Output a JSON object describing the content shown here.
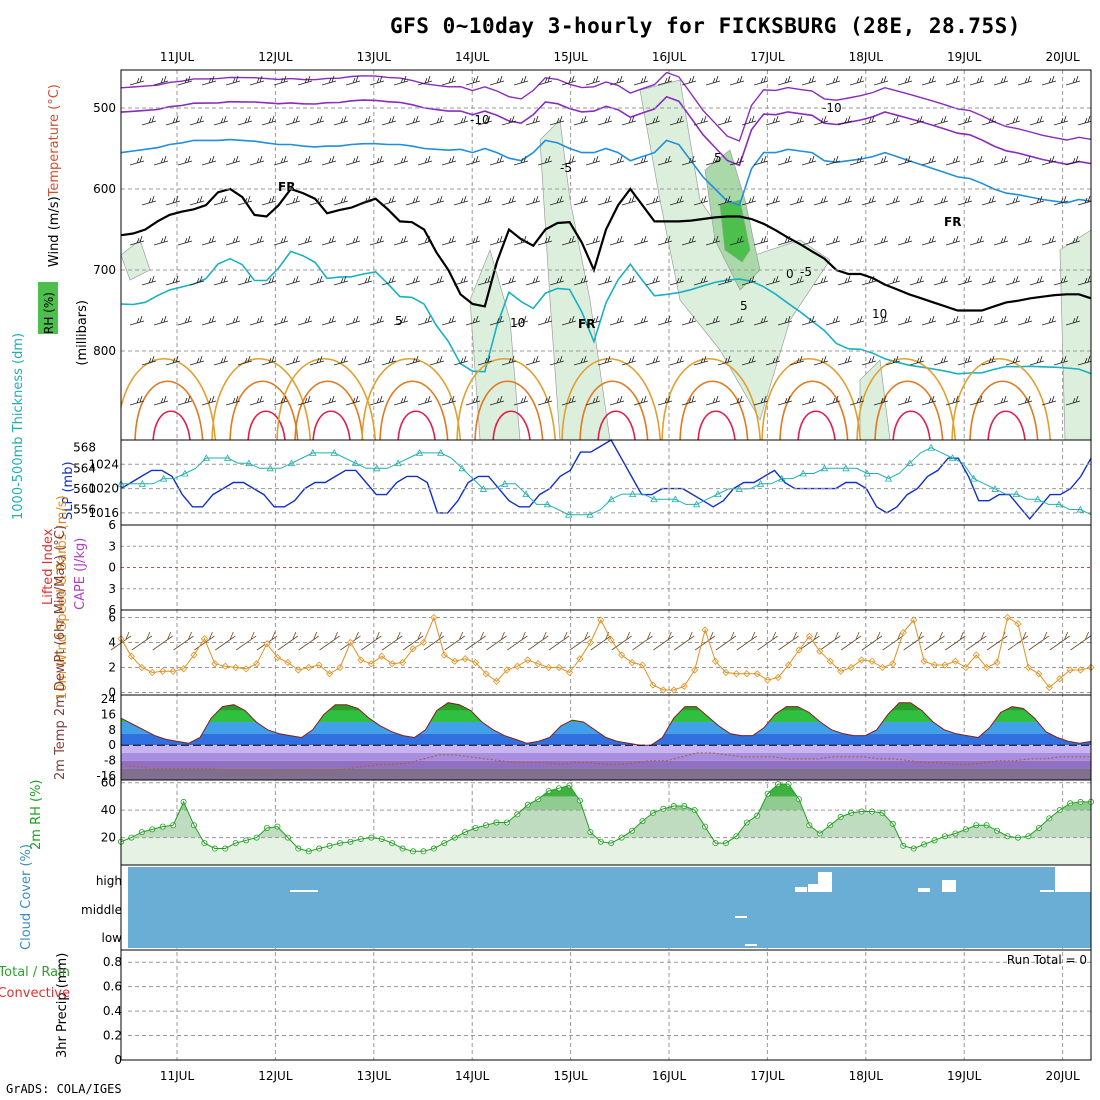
{
  "title": "GFS 0~10day 3-hourly for FICKSBURG (28E, 28.75S)",
  "credit": "GrADS: COLA/IGES",
  "days": [
    "11JUL",
    "12JUL",
    "13JUL",
    "14JUL",
    "15JUL",
    "16JUL",
    "17JUL",
    "18JUL",
    "19JUL",
    "20JUL"
  ],
  "colors": {
    "grid": "#9a9a9a",
    "rh_light": "#dcefdc",
    "rh_mid": "#a9d8a9",
    "rh_dark": "#4cbf4c",
    "temp_neg10": "#8a2bc0",
    "temp_neg5": "#1f8fe0",
    "temp_5": "#17b1c0",
    "temp_10": "#e0a030",
    "temp_15": "#e07a20",
    "temp_20": "#e0204a",
    "slp": "#1030c8",
    "thick": "#20b0b0",
    "wind": "#e09020",
    "rh2m": "#20a020",
    "cloud": "#6aaed6"
  },
  "chart_data": [
    {
      "id": "sounding",
      "type": "heatmap",
      "ylabel_parts": [
        "Wind (m/s)",
        "Temperature (°C)",
        "RH (%)",
        "(millibars)"
      ],
      "y_ticks": [
        "500",
        "600",
        "700",
        "800"
      ],
      "ylim": [
        910,
        453
      ],
      "contour_labels": [
        "-10",
        "-10",
        "-5",
        "-5",
        "5",
        "5",
        "10",
        "10",
        "FR",
        "FR",
        "FR",
        "5",
        "0"
      ],
      "freezing_level_mb": [
        657,
        655,
        650,
        640,
        632,
        628,
        625,
        620,
        604,
        600,
        610,
        632,
        634,
        620,
        600,
        605,
        612,
        630,
        626,
        623,
        617,
        612,
        625,
        640,
        641,
        650,
        678,
        700,
        730,
        742,
        745,
        690,
        650,
        662,
        670,
        650,
        642,
        641,
        666,
        700,
        650,
        620,
        600,
        620,
        640,
        640,
        640,
        639,
        637,
        635,
        634,
        634,
        637,
        643,
        651,
        660,
        668,
        677,
        686,
        700,
        705,
        705,
        710,
        718,
        724,
        730,
        735,
        740,
        745,
        750,
        750,
        750,
        745,
        740,
        738,
        735,
        733,
        731,
        730,
        730,
        735
      ],
      "minus5_level_mb": [
        560,
        558,
        556,
        554,
        550,
        548,
        545,
        545,
        545,
        544,
        545,
        546,
        548,
        550,
        550,
        552,
        553,
        552,
        552,
        550,
        549,
        549,
        550,
        550,
        552,
        555,
        556,
        557,
        556,
        560,
        555,
        560,
        567,
        570,
        560,
        545,
        548,
        555,
        560,
        560,
        555,
        560,
        570,
        565,
        560,
        545,
        550,
        570,
        590,
        605,
        620,
        625,
        580,
        560,
        560,
        556,
        558,
        560,
        570,
        572,
        570,
        568,
        565,
        560,
        565,
        570,
        575,
        580,
        585,
        590,
        592,
        598,
        605,
        610,
        612,
        615,
        618,
        620,
        622,
        618,
        620
      ],
      "rh_max_pct": 70
    },
    {
      "id": "slp_thickness",
      "type": "line",
      "ylabel": "1000-500mb Thickness (dm)",
      "ylabel2": "SLP (mb)",
      "left_ticks": [
        "556",
        "560",
        "564",
        "568"
      ],
      "right_ticks": [
        "1016",
        "1020",
        "1024"
      ],
      "ylim_left": [
        553,
        569.5
      ],
      "ylim_right": [
        1014,
        1028
      ],
      "series": [
        {
          "name": "SLP (mb)",
          "axis": "right",
          "values": [
            1020,
            1021,
            1022,
            1023,
            1023,
            1022,
            1019,
            1017,
            1017,
            1019,
            1020,
            1021,
            1021,
            1020,
            1019,
            1017,
            1017,
            1018,
            1020,
            1021,
            1021,
            1022,
            1023,
            1023,
            1021,
            1019,
            1019,
            1021,
            1022,
            1022,
            1021,
            1016,
            1016,
            1018,
            1021,
            1022,
            1022,
            1020,
            1018,
            1017,
            1017,
            1019,
            1020,
            1022,
            1023,
            1026,
            1026,
            1027,
            1028,
            1025,
            1022,
            1019,
            1019,
            1020,
            1020,
            1020,
            1019,
            1018,
            1017,
            1018,
            1020,
            1021,
            1021,
            1022,
            1023,
            1021,
            1020,
            1020,
            1020,
            1020,
            1020,
            1021,
            1021,
            1020,
            1017,
            1016,
            1017,
            1019,
            1020,
            1022,
            1023,
            1025,
            1025,
            1022,
            1018,
            1018,
            1019,
            1019,
            1017,
            1015,
            1017,
            1019,
            1019,
            1020,
            1022,
            1025
          ]
        },
        {
          "name": "1000-500mb Thickness (dm)",
          "axis": "left",
          "values": [
            561,
            561,
            561,
            561,
            562,
            562,
            563,
            564,
            566,
            566,
            566,
            565,
            565,
            564,
            564,
            564,
            565,
            566,
            567,
            567,
            567,
            566,
            565,
            564,
            564,
            564,
            565,
            566,
            567,
            567,
            567,
            566,
            564,
            562,
            560,
            560,
            561,
            561,
            559,
            557,
            557,
            556,
            555,
            555,
            555,
            556,
            558,
            559,
            559,
            559,
            558,
            558,
            558,
            557,
            557,
            558,
            559,
            560,
            560,
            560,
            561,
            561,
            562,
            562,
            563,
            563,
            564,
            564,
            564,
            564,
            563,
            563,
            562,
            563,
            565,
            567,
            568,
            567,
            566,
            565,
            562,
            561,
            560,
            559,
            559,
            558,
            558,
            557,
            557,
            556,
            556,
            555
          ]
        }
      ]
    },
    {
      "id": "cape_li",
      "type": "line",
      "ylabel": "Lifted Index",
      "ylabel2": "CAPE (J/kg)",
      "y_ticks": [
        "6",
        "3",
        "0",
        "3",
        "6"
      ],
      "ylim": [
        -6,
        6
      ],
      "series": [
        {
          "name": "Lifted Index",
          "values": []
        }
      ]
    },
    {
      "id": "wind10m",
      "type": "line",
      "ylabel": "10m Wind Speed & Barbs (m/s)",
      "y_ticks": [
        "0",
        "2",
        "4",
        "6"
      ],
      "ylim": [
        -0.2,
        6.6
      ],
      "series": [
        {
          "name": "10m Wind Speed",
          "values": [
            4.3,
            2.9,
            2.0,
            1.6,
            1.7,
            1.7,
            1.9,
            3.0,
            4.3,
            2.3,
            2.1,
            2.0,
            1.9,
            2.3,
            3.9,
            2.8,
            2.4,
            1.8,
            2.0,
            2.2,
            1.5,
            2.0,
            4.0,
            2.6,
            2.3,
            2.9,
            2.3,
            2.4,
            3.5,
            4.0,
            6.0,
            3.0,
            2.5,
            2.7,
            2.4,
            1.5,
            0.9,
            1.8,
            2.1,
            2.6,
            2.3,
            2.0,
            2.0,
            1.6,
            2.7,
            4.0,
            5.8,
            4.2,
            3.0,
            2.4,
            2.2,
            0.6,
            0.2,
            0.2,
            0.5,
            1.8,
            5.0,
            2.5,
            1.6,
            1.5,
            1.5,
            1.5,
            1.0,
            1.2,
            2.2,
            3.4,
            4.5,
            3.3,
            2.5,
            1.7,
            2.0,
            2.6,
            2.5,
            2.0,
            2.3,
            4.8,
            5.8,
            2.5,
            2.2,
            2.2,
            2.5,
            2.0,
            3.0,
            2.0,
            2.4,
            6.0,
            5.5,
            2.0,
            1.5,
            0.4,
            1.1,
            1.8,
            1.8,
            2.0
          ]
        }
      ]
    },
    {
      "id": "temp2m",
      "type": "area",
      "ylabel": "2m Temp 2m DewPt (6hr Min/Max) (°C)",
      "y_ticks": [
        "16",
        "8",
        "0",
        "-8",
        "-16"
      ],
      "top_tick": "24",
      "ylim": [
        -18,
        26
      ],
      "series": [
        {
          "name": "2m Temp",
          "values": [
            14,
            11,
            8,
            5,
            3,
            2,
            1,
            4,
            14,
            20,
            21,
            18,
            12,
            8,
            6,
            5,
            4,
            8,
            16,
            21,
            21,
            19,
            14,
            10,
            7,
            5,
            4,
            8,
            18,
            22,
            21,
            18,
            12,
            8,
            5,
            3,
            1,
            2,
            4,
            10,
            13,
            12,
            8,
            4,
            2,
            1,
            0,
            0,
            4,
            14,
            20,
            20,
            15,
            10,
            6,
            5,
            5,
            9,
            16,
            20,
            20,
            17,
            12,
            8,
            6,
            5,
            5,
            8,
            16,
            22,
            22,
            18,
            12,
            8,
            6,
            5,
            4,
            9,
            17,
            20,
            19,
            14,
            7,
            4,
            2,
            1,
            2
          ]
        },
        {
          "name": "2m DewPt",
          "values": [
            -10,
            -11,
            -12,
            -12,
            -12,
            -12,
            -12,
            -13,
            -13,
            -13,
            -14,
            -14,
            -14,
            -13,
            -13,
            -12,
            -11,
            -10,
            -10,
            -9,
            -7,
            -5,
            -5,
            -6,
            -7,
            -8,
            -9,
            -9,
            -9,
            -10,
            -9,
            -9,
            -10,
            -10,
            -9,
            -8,
            -8,
            -6,
            -4,
            -4,
            -5,
            -6,
            -6,
            -6,
            -7,
            -7,
            -7,
            -6,
            -6,
            -6,
            -7,
            -7,
            -8,
            -9,
            -9,
            -10,
            -10,
            -9,
            -8,
            -8,
            -7,
            -7,
            -6,
            -6,
            -6
          ]
        }
      ]
    },
    {
      "id": "rh2m",
      "type": "area",
      "ylabel": "2m RH (%)",
      "y_ticks": [
        "20",
        "40",
        "60"
      ],
      "ylim": [
        0,
        62
      ],
      "series": [
        {
          "name": "2m RH",
          "values": [
            17,
            20,
            24,
            26,
            28,
            29,
            46,
            29,
            16,
            12,
            12,
            16,
            18,
            20,
            27,
            28,
            20,
            12,
            10,
            12,
            14,
            16,
            17,
            19,
            20,
            19,
            16,
            12,
            10,
            10,
            12,
            16,
            20,
            24,
            27,
            29,
            31,
            31,
            37,
            44,
            48,
            54,
            56,
            58,
            47,
            24,
            17,
            16,
            20,
            25,
            32,
            38,
            41,
            43,
            43,
            40,
            28,
            16,
            16,
            21,
            31,
            36,
            52,
            59,
            59,
            48,
            29,
            23,
            29,
            35,
            38,
            39,
            39,
            38,
            30,
            14,
            12,
            15,
            18,
            21,
            23,
            26,
            29,
            29,
            25,
            21,
            20,
            21,
            27,
            34,
            40,
            45,
            46,
            46
          ]
        }
      ]
    },
    {
      "id": "cloud",
      "type": "bar",
      "ylabel": "Cloud Cover (%)",
      "y_ticks": [
        "high",
        "middle",
        "low"
      ],
      "series": [
        {
          "name": "Cloud Cover",
          "values": []
        }
      ]
    },
    {
      "id": "precip",
      "type": "bar",
      "ylabel": "3hr Precip (mm)",
      "ylabel_left": [
        "Total / Rain",
        "Convective"
      ],
      "y_ticks": [
        "0",
        "0.2",
        "0.4",
        "0.6",
        "0.8"
      ],
      "ylim": [
        0,
        0.9
      ],
      "annotation": "Run Total = 0",
      "series": [
        {
          "name": "3hr Precip",
          "values": []
        }
      ]
    }
  ]
}
